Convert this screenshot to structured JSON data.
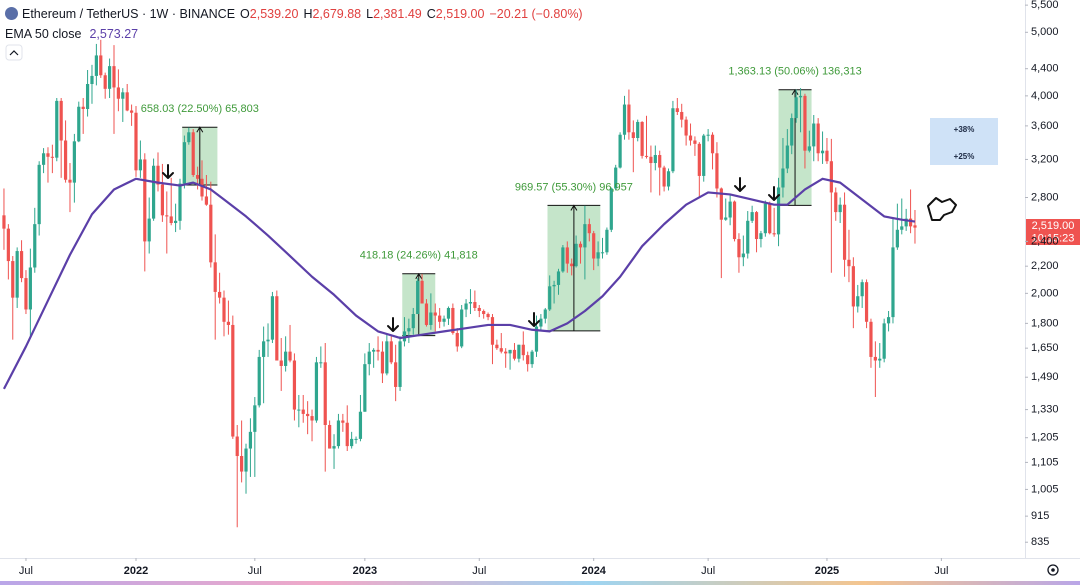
{
  "chart_data": {
    "type": "candlestick",
    "title": "Ethereum / TetherUS · 1W · BINANCE",
    "ohlc": [
      {
        "key": "O",
        "text": "2,539.20"
      },
      {
        "key": "H",
        "text": "2,679.88"
      },
      {
        "key": "L",
        "text": "2,381.49"
      },
      {
        "key": "C",
        "text": "2,519.00"
      }
    ],
    "change": "−20.21 (−0.80%)",
    "price_label": "2,519.00",
    "countdown": "10:15:23",
    "log_y": true,
    "grid": false,
    "up_color": "#2fa68e",
    "down_color": "#ef5350",
    "open": [
      2630,
      2510,
      2240,
      1970,
      2320,
      2110,
      1890,
      2190,
      2550,
      3140,
      3270,
      3230,
      3220,
      3930,
      3420,
      2980,
      2950,
      3410,
      3850,
      3820,
      4170,
      4290,
      4610,
      4300,
      4100,
      4440,
      4120,
      3960,
      4050,
      3800,
      3770,
      3080,
      3200,
      2400,
      2600,
      3130,
      2930,
      2630,
      2620,
      2560,
      2580,
      2940,
      3400,
      3520,
      3030,
      2990,
      2810,
      2730,
      2230,
      2010,
      1970,
      1810,
      1790,
      1210,
      1130,
      1070,
      1160,
      1230,
      1350,
      1600,
      1690,
      1700,
      1980,
      1580,
      1550,
      1630,
      1580,
      1330,
      1330,
      1310,
      1300,
      1280,
      1570,
      1570,
      1260,
      1160,
      1170,
      1280,
      1270,
      1170,
      1200,
      1200,
      1320,
      1560,
      1630,
      1640,
      1630,
      1510,
      1690,
      1570,
      1440,
      1690,
      1750,
      1770,
      1860,
      2090,
      1930,
      1790,
      1870,
      1850,
      1810,
      1830,
      1900,
      1740,
      1660,
      1890,
      1930,
      1940,
      1900,
      1880,
      1860,
      1840,
      1670,
      1650,
      1630,
      1620,
      1640,
      1590,
      1670,
      1610,
      1560,
      1630,
      1780,
      1830,
      1890,
      2050,
      2060,
      2160,
      2350,
      2220,
      2200,
      2380,
      2350,
      2550,
      2470,
      2260,
      2310,
      2310,
      2500,
      2890,
      3110,
      3490,
      3880,
      3520,
      3450,
      3650,
      3240,
      3230,
      3160,
      3250,
      3110,
      2910,
      3070,
      3830,
      3780,
      3680,
      3480,
      3420,
      3380,
      3020,
      3480,
      3490,
      3270,
      2890,
      2590,
      2610,
      2760,
      2420,
      2270,
      2300,
      2580,
      2660,
      2420,
      2470,
      2740,
      2470,
      2460,
      2900,
      3100,
      3360,
      3700,
      3980,
      4000,
      3300,
      3350,
      3630,
      3270,
      3300,
      3180,
      2850,
      2660,
      2730,
      2250,
      2200,
      1910,
      1980,
      2080,
      1810,
      1600,
      1580,
      1590,
      1800,
      1840,
      2350,
      2500,
      2530,
      2600,
      2539.2
    ],
    "high": [
      2890,
      2550,
      2280,
      2350,
      2410,
      2170,
      2340,
      2700,
      3180,
      3330,
      3340,
      3370,
      3970,
      3970,
      3670,
      3160,
      3500,
      3920,
      3970,
      4380,
      4460,
      4800,
      4870,
      4340,
      4560,
      4780,
      4390,
      4110,
      4170,
      3880,
      3860,
      3420,
      3270,
      2800,
      3210,
      3280,
      3150,
      2860,
      3000,
      2740,
      2990,
      3480,
      3580,
      3560,
      3120,
      3190,
      3030,
      2960,
      2460,
      2150,
      2020,
      1950,
      1850,
      1260,
      1280,
      1180,
      1290,
      1390,
      1640,
      1780,
      1800,
      2010,
      2020,
      1710,
      1720,
      1790,
      1620,
      1400,
      1400,
      1370,
      1330,
      1600,
      1660,
      1680,
      1280,
      1220,
      1310,
      1310,
      1350,
      1230,
      1210,
      1400,
      1620,
      1680,
      1650,
      1720,
      1690,
      1740,
      1720,
      1670,
      1720,
      1840,
      1830,
      1900,
      2110,
      2140,
      1960,
      2000,
      1930,
      1900,
      1850,
      1910,
      1930,
      1770,
      1920,
      1960,
      2030,
      2020,
      1920,
      1890,
      1870,
      1860,
      1700,
      1740,
      1650,
      1640,
      1680,
      1670,
      1750,
      1630,
      1640,
      1850,
      1860,
      1900,
      2130,
      2090,
      2180,
      2370,
      2400,
      2260,
      2450,
      2400,
      2720,
      2600,
      2490,
      2400,
      2430,
      2520,
      2900,
      3140,
      3520,
      4000,
      4090,
      3670,
      3680,
      3660,
      3730,
      3360,
      3360,
      3300,
      3130,
      3100,
      3930,
      3970,
      3890,
      3720,
      3630,
      3470,
      3400,
      3500,
      3560,
      3520,
      3400,
      2900,
      2790,
      2820,
      2770,
      2470,
      2450,
      2670,
      2720,
      2670,
      2490,
      2770,
      2760,
      2700,
      3000,
      3450,
      3560,
      3760,
      4090,
      4110,
      4030,
      3540,
      3740,
      3700,
      3530,
      3450,
      3440,
      2900,
      2800,
      2850,
      2500,
      2270,
      2060,
      2100,
      2100,
      1830,
      1690,
      1680,
      1830,
      1880,
      2600,
      2740,
      2790,
      2690,
      2880,
      2679.88
    ],
    "low": [
      2330,
      2100,
      1700,
      1900,
      2080,
      1860,
      1720,
      2150,
      2450,
      3050,
      2950,
      3050,
      3180,
      3000,
      2950,
      2660,
      2750,
      3400,
      3500,
      3720,
      3890,
      4150,
      4260,
      3960,
      3970,
      3500,
      3790,
      3650,
      3790,
      3600,
      3010,
      3000,
      2160,
      2300,
      2580,
      2860,
      2570,
      2300,
      2540,
      2480,
      2500,
      2890,
      3370,
      3010,
      2880,
      2770,
      2720,
      2190,
      1700,
      1930,
      1720,
      1730,
      1200,
      880,
      1030,
      990,
      1050,
      1050,
      1340,
      1360,
      1600,
      1680,
      1580,
      1420,
      1520,
      1570,
      1280,
      1250,
      1270,
      1220,
      1190,
      1270,
      1540,
      1070,
      1160,
      1080,
      1160,
      1230,
      1150,
      1160,
      1180,
      1190,
      1320,
      1500,
      1540,
      1580,
      1460,
      1500,
      1560,
      1370,
      1420,
      1660,
      1680,
      1730,
      1860,
      1930,
      1780,
      1760,
      1750,
      1770,
      1780,
      1790,
      1730,
      1630,
      1650,
      1840,
      1860,
      1880,
      1840,
      1830,
      1820,
      1560,
      1640,
      1620,
      1540,
      1530,
      1580,
      1570,
      1580,
      1520,
      1540,
      1600,
      1760,
      1800,
      1880,
      1930,
      1990,
      2150,
      2150,
      2130,
      2190,
      2220,
      2100,
      2400,
      2170,
      2200,
      2260,
      2290,
      2480,
      2870,
      3100,
      3430,
      3430,
      3060,
      3410,
      3210,
      3210,
      2850,
      3080,
      2820,
      2860,
      2870,
      3050,
      3740,
      3580,
      3360,
      3360,
      3240,
      2810,
      2960,
      3410,
      3090,
      2800,
      2110,
      2580,
      2540,
      2400,
      2150,
      2200,
      2260,
      2560,
      2310,
      2350,
      2440,
      2460,
      2440,
      2360,
      2800,
      3050,
      3260,
      3640,
      3520,
      3100,
      3280,
      3180,
      3180,
      3150,
      3150,
      2150,
      2580,
      2560,
      2120,
      2080,
      1770,
      1870,
      1900,
      1770,
      1540,
      1390,
      1540,
      1570,
      1750,
      1800,
      2330,
      2460,
      2490,
      2470,
      2381.49
    ],
    "close": [
      2510,
      2240,
      1970,
      2320,
      2110,
      1890,
      2190,
      2550,
      3140,
      3270,
      3230,
      3220,
      3930,
      3420,
      2980,
      2950,
      3410,
      3850,
      3820,
      4170,
      4290,
      4610,
      4300,
      4100,
      4440,
      4120,
      3960,
      4050,
      3800,
      3770,
      3080,
      3200,
      2400,
      2600,
      3130,
      2930,
      2630,
      2620,
      2560,
      2580,
      2940,
      3400,
      3520,
      3030,
      2990,
      2810,
      2730,
      2230,
      2010,
      1970,
      1810,
      1790,
      1210,
      1130,
      1070,
      1160,
      1230,
      1350,
      1600,
      1690,
      1700,
      1980,
      1580,
      1550,
      1630,
      1580,
      1330,
      1330,
      1310,
      1300,
      1280,
      1570,
      1570,
      1260,
      1160,
      1170,
      1280,
      1270,
      1170,
      1200,
      1200,
      1320,
      1560,
      1630,
      1640,
      1630,
      1510,
      1690,
      1570,
      1440,
      1690,
      1750,
      1770,
      1860,
      2090,
      1930,
      1790,
      1870,
      1850,
      1810,
      1830,
      1900,
      1740,
      1660,
      1890,
      1930,
      1940,
      1900,
      1880,
      1860,
      1840,
      1670,
      1650,
      1630,
      1620,
      1640,
      1590,
      1670,
      1610,
      1560,
      1630,
      1780,
      1830,
      1890,
      2050,
      2060,
      2160,
      2350,
      2220,
      2200,
      2380,
      2350,
      2550,
      2470,
      2260,
      2310,
      2310,
      2500,
      2890,
      3110,
      3490,
      3880,
      3520,
      3450,
      3650,
      3240,
      3230,
      3160,
      3250,
      3110,
      2910,
      3070,
      3830,
      3780,
      3680,
      3480,
      3420,
      3380,
      3020,
      3480,
      3490,
      3270,
      2890,
      2590,
      2610,
      2760,
      2420,
      2270,
      2300,
      2580,
      2660,
      2420,
      2470,
      2740,
      2470,
      2460,
      2900,
      3100,
      3360,
      3700,
      3980,
      4000,
      3300,
      3350,
      3630,
      3270,
      3300,
      3180,
      2850,
      2660,
      2730,
      2250,
      2200,
      1910,
      1980,
      2080,
      1810,
      1600,
      1580,
      1590,
      1800,
      1840,
      2350,
      2500,
      2530,
      2600,
      2530,
      2519
    ],
    "series": [
      {
        "name": "EMA 50 close",
        "color": "#5b3fa8",
        "last_label": "2,573.27",
        "x": [
          0,
          5,
          10,
          15,
          20,
          25,
          30,
          35,
          40,
          43,
          47,
          50,
          55,
          60,
          65,
          70,
          75,
          80,
          85,
          90,
          95,
          100,
          105,
          110,
          115,
          120,
          124,
          128,
          132,
          136,
          140,
          145,
          150,
          155,
          160,
          165,
          170,
          175,
          178,
          182,
          186,
          190,
          195,
          200,
          204,
          207
        ],
        "values": [
          1430,
          1660,
          1950,
          2290,
          2640,
          2880,
          2990,
          2950,
          2920,
          2950,
          2880,
          2780,
          2620,
          2450,
          2280,
          2120,
          1990,
          1850,
          1750,
          1710,
          1730,
          1750,
          1770,
          1790,
          1790,
          1760,
          1750,
          1800,
          1880,
          1980,
          2120,
          2360,
          2550,
          2730,
          2850,
          2830,
          2780,
          2730,
          2730,
          2880,
          2990,
          2950,
          2780,
          2620,
          2590,
          2573.27
        ]
      }
    ],
    "measures": [
      {
        "label": "658.03 (22.50%) 65,803",
        "start": 40.5,
        "end": 48.5,
        "from": 2925,
        "to": 3583
      },
      {
        "label": "418.18 (24.26%) 41,818",
        "start": 90.5,
        "end": 98,
        "from": 1724,
        "to": 2142
      },
      {
        "label": "969.57 (55.30%) 96,957",
        "start": 123.5,
        "end": 135.5,
        "from": 1753,
        "to": 2723
      },
      {
        "label": "1,363.13 (50.06%) 136,313",
        "start": 176,
        "end": 183.5,
        "from": 2723,
        "to": 4086
      }
    ],
    "measure_color": "#9fd4a6",
    "measure_text_color": "#3f9a3a",
    "targets": [
      "+38%",
      "+25%"
    ],
    "xlim": [
      -0.9,
      232
    ],
    "xticks": [
      {
        "value": 5,
        "label": "Jul"
      },
      {
        "value": 30,
        "label": "2022"
      },
      {
        "value": 57,
        "label": "Jul"
      },
      {
        "value": 82,
        "label": "2023"
      },
      {
        "value": 108,
        "label": "Jul"
      },
      {
        "value": 134,
        "label": "2024"
      },
      {
        "value": 160,
        "label": "Jul"
      },
      {
        "value": 187,
        "label": "2025"
      },
      {
        "value": 213,
        "label": "Jul"
      }
    ],
    "ylim": [
      790,
      5600
    ],
    "yticks": [
      {
        "value": 5500,
        "label": "5,500"
      },
      {
        "value": 5000,
        "label": "5,000"
      },
      {
        "value": 4400,
        "label": "4,400"
      },
      {
        "value": 4000,
        "label": "4,000"
      },
      {
        "value": 3600,
        "label": "3,600"
      },
      {
        "value": 3200,
        "label": "3,200"
      },
      {
        "value": 2800,
        "label": "2,800"
      },
      {
        "value": 2400,
        "label": "2,400"
      },
      {
        "value": 2200,
        "label": "2,200"
      },
      {
        "value": 2000,
        "label": "2,000"
      },
      {
        "value": 1800,
        "label": "1,800"
      },
      {
        "value": 1650,
        "label": "1,650"
      },
      {
        "value": 1490,
        "label": "1,490"
      },
      {
        "value": 1330,
        "label": "1,330"
      },
      {
        "value": 1205,
        "label": "1,205"
      },
      {
        "value": 1105,
        "label": "1,105"
      },
      {
        "value": 1005,
        "label": "1,005"
      },
      {
        "value": 915,
        "label": "915"
      },
      {
        "value": 835,
        "label": "835"
      }
    ]
  }
}
